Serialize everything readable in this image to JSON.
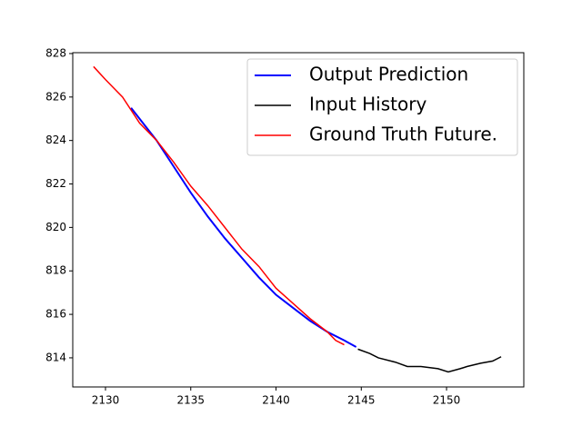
{
  "chart_data": {
    "type": "line",
    "xlim": [
      2128.08,
      2154.53
    ],
    "ylim": [
      812.66,
      828.04
    ],
    "xticks": [
      2130,
      2135,
      2140,
      2145,
      2150
    ],
    "yticks": [
      814,
      816,
      818,
      820,
      822,
      824,
      826,
      828
    ],
    "legend": "upper right",
    "series": [
      {
        "name": "Output Prediction",
        "color": "#0000ff",
        "linewidth": 2,
        "x": [
          2131.5,
          2132,
          2133,
          2134,
          2135,
          2136,
          2137,
          2138,
          2139,
          2140,
          2141,
          2142,
          2143,
          2144,
          2144.7
        ],
        "values": [
          825.5,
          825.0,
          824.0,
          822.8,
          821.6,
          820.5,
          819.5,
          818.6,
          817.7,
          816.9,
          816.3,
          815.7,
          815.2,
          814.8,
          814.5
        ]
      },
      {
        "name": "Input History",
        "color": "#000000",
        "linewidth": 1.5,
        "x": [
          2144.8,
          2145.5,
          2146,
          2147,
          2147.7,
          2148.5,
          2149.5,
          2150.1,
          2150.8,
          2151.2,
          2152,
          2152.7,
          2153.2
        ],
        "values": [
          814.4,
          814.2,
          814.0,
          813.8,
          813.6,
          813.6,
          813.5,
          813.35,
          813.5,
          813.6,
          813.75,
          813.85,
          814.05
        ]
      },
      {
        "name": "Ground Truth Future.",
        "color": "#ff0000",
        "linewidth": 1.5,
        "x": [
          2129.3,
          2130,
          2131,
          2132,
          2133,
          2134,
          2135,
          2136,
          2137,
          2138,
          2139,
          2140,
          2141,
          2142,
          2143,
          2143.5,
          2144
        ],
        "values": [
          827.4,
          826.8,
          826.0,
          824.8,
          824.0,
          823.0,
          821.9,
          821.0,
          820.0,
          819.0,
          818.2,
          817.2,
          816.5,
          815.8,
          815.2,
          814.8,
          814.6
        ]
      }
    ]
  }
}
